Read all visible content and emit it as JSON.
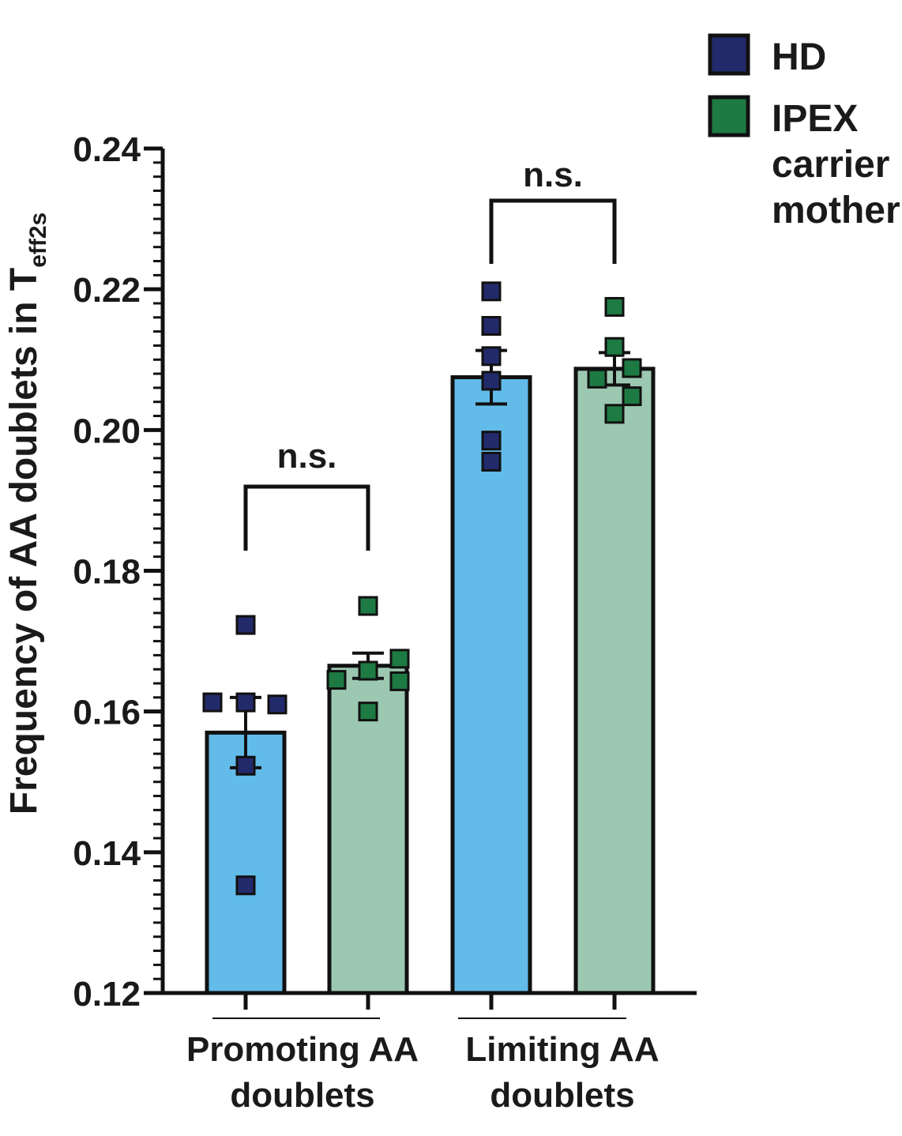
{
  "chart_data": {
    "type": "bar",
    "ylabel_main": "Frequency of AA doublets in T",
    "ylabel_sub": "eff2s",
    "ylim": [
      0.12,
      0.24
    ],
    "yticks": [
      "0.12",
      "0.14",
      "0.16",
      "0.18",
      "0.20",
      "0.22",
      "0.24"
    ],
    "groups": [
      {
        "label_lines": [
          "Promoting AA",
          "doublets"
        ],
        "significance": "n.s."
      },
      {
        "label_lines": [
          "Limiting AA",
          "doublets"
        ],
        "significance": "n.s."
      }
    ],
    "series": [
      {
        "name": "HD",
        "color": "#232a6b",
        "bar_color": "#62bbe9",
        "means": [
          0.157,
          0.2075
        ],
        "sem": [
          0.005,
          0.0038
        ],
        "points": [
          [
            0.1723,
            0.1613,
            0.1613,
            0.161,
            0.1523,
            0.1353
          ],
          [
            0.2197,
            0.2148,
            0.2105,
            0.207,
            0.1985,
            0.1955
          ]
        ]
      },
      {
        "name": "IPEX carrier mother",
        "legend_lines": [
          "IPEX",
          "carrier",
          "mother"
        ],
        "color": "#1e7a43",
        "bar_color": "#9cc8b1",
        "means": [
          0.1665,
          0.2087
        ],
        "sem": [
          0.0018,
          0.0023
        ],
        "points": [
          [
            0.175,
            0.1675,
            0.1658,
            0.1645,
            0.1643,
            0.16
          ],
          [
            0.2175,
            0.2118,
            0.2088,
            0.2073,
            0.2048,
            0.2023
          ]
        ]
      }
    ]
  }
}
